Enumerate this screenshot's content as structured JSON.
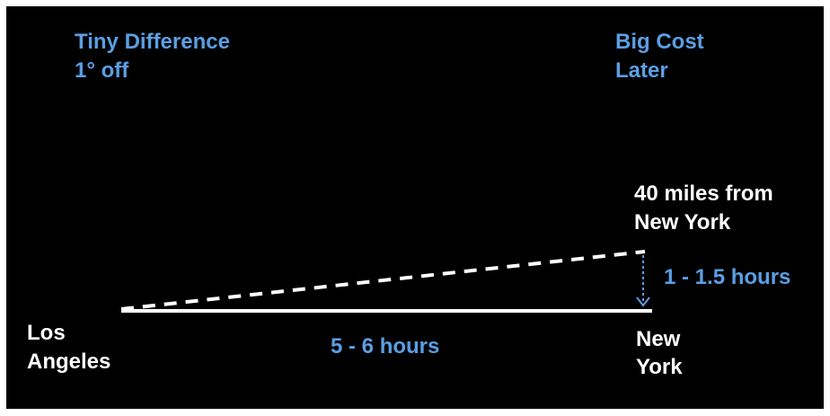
{
  "header": {
    "left": [
      "Tiny Difference",
      "1° off"
    ],
    "right": [
      "Big Cost",
      "Later"
    ]
  },
  "labels": {
    "origin": [
      "Los",
      "Angeles"
    ],
    "destination": [
      "New",
      "York"
    ],
    "deviation": [
      "40 miles from",
      "New York"
    ],
    "planned_duration": "5 - 6 hours",
    "correction_time": "1 - 1.5 hours"
  }
}
